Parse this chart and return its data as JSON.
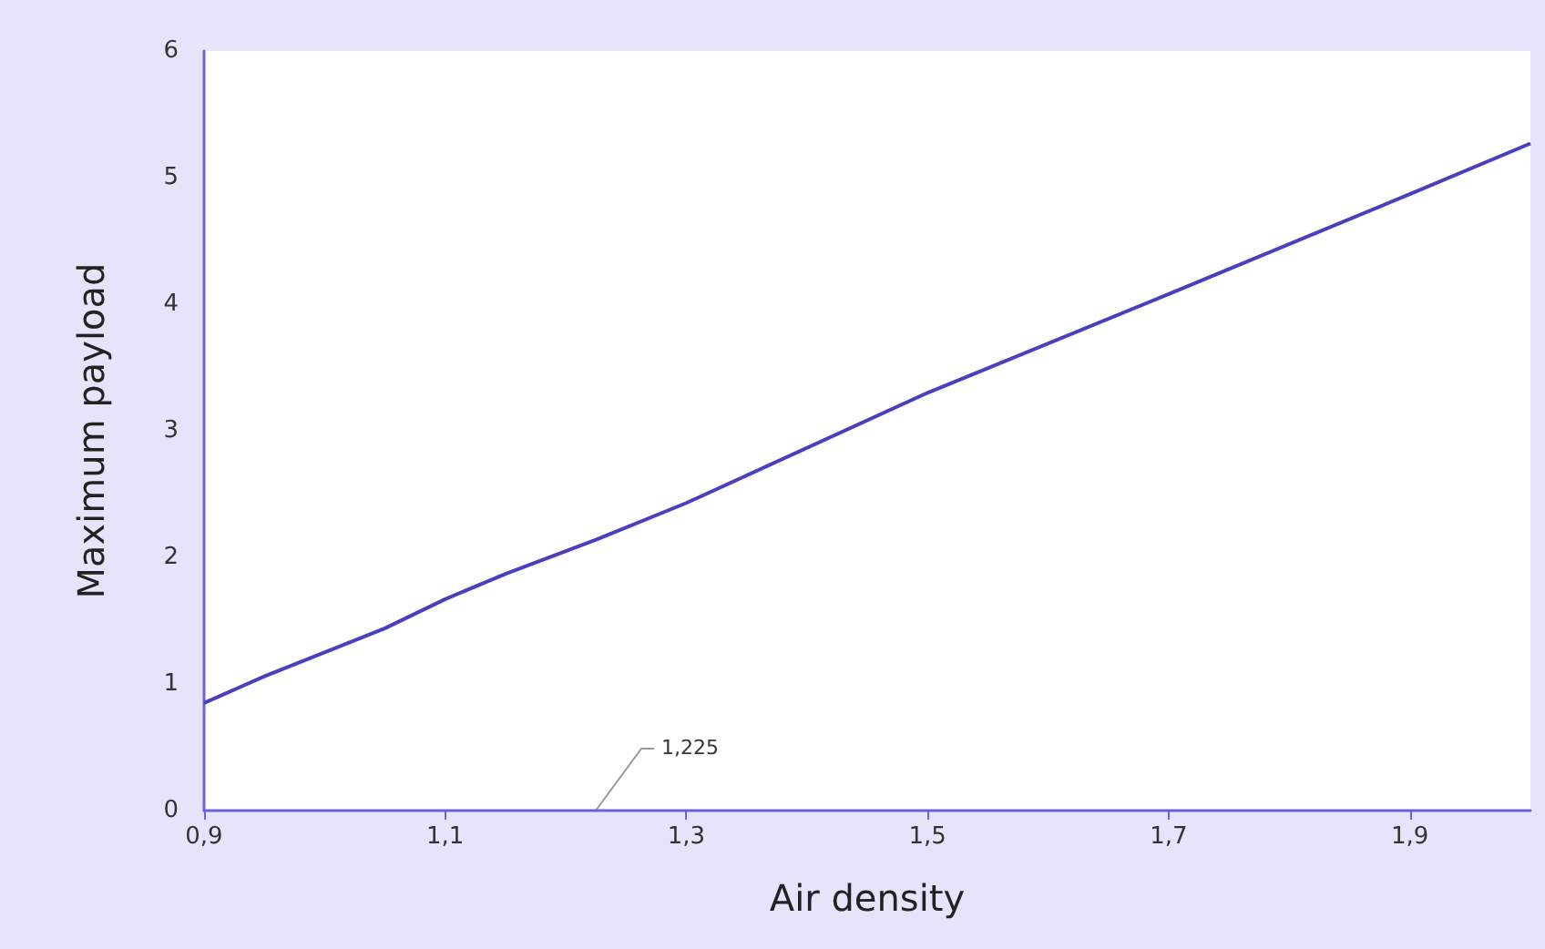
{
  "chart_data": {
    "type": "line",
    "xlabel": "Air density",
    "ylabel": "Maximum payload",
    "xlim": [
      0.9,
      2.0
    ],
    "xticks": [
      {
        "value": 0.9,
        "label": "0,9"
      },
      {
        "value": 1.1,
        "label": "1,1"
      },
      {
        "value": 1.3,
        "label": "1,3"
      },
      {
        "value": 1.5,
        "label": "1,5"
      },
      {
        "value": 1.7,
        "label": "1,7"
      },
      {
        "value": 1.9,
        "label": "1,9"
      }
    ],
    "ylim": [
      0,
      6
    ],
    "yticks": [
      0,
      1,
      2,
      3,
      4,
      5,
      6
    ],
    "series": [
      {
        "color": "#4a3fbf",
        "x": [
          0.9,
          0.95,
          1.05,
          1.1,
          1.15,
          1.225,
          1.3,
          1.5,
          1.7,
          1.9,
          2.0
        ],
        "values": [
          0.85,
          1.06,
          1.44,
          1.67,
          1.87,
          2.14,
          2.43,
          3.3,
          4.08,
          4.87,
          5.27
        ]
      }
    ],
    "annotations": [
      "1,225"
    ],
    "grid": false,
    "marker": "none",
    "line_style": "solid"
  }
}
